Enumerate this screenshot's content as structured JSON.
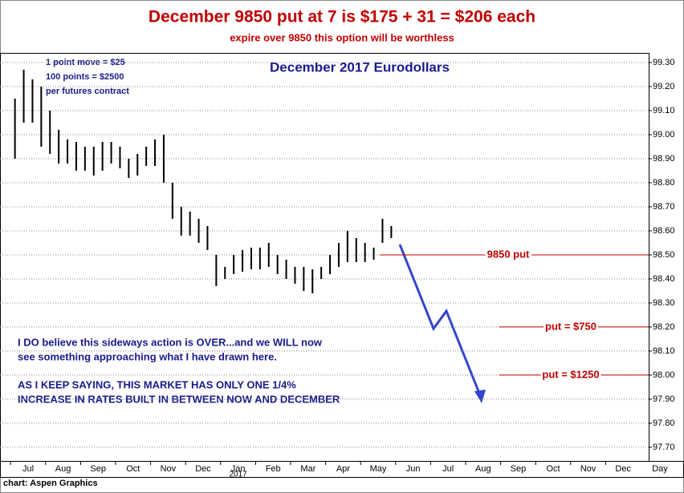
{
  "chart_data": {
    "type": "ohlc",
    "title": "December 9850 put at 7 is $175 + 31 = $206 each",
    "subtitle": "expire over 9850 this option will be worthless",
    "chart_title": "December 2017 Eurodollars",
    "notes": [
      "1 point move = $25",
      "100 points = $2500",
      "per futures contract"
    ],
    "comments": [
      "I DO believe this sideways action is OVER...and we WILL now",
      "see something approaching what I have drawn here.",
      "AS I KEEP SAYING, THIS MARKET HAS ONLY ONE 1/4%",
      "INCREASE IN RATES BUILT IN BETWEEN NOW AND DECEMBER"
    ],
    "credit": "chart: Aspen Graphics",
    "categories": [
      "Jul",
      "Aug",
      "Sep",
      "Oct",
      "Nov",
      "Dec",
      "Jan",
      "Feb",
      "Mar",
      "Apr",
      "May",
      "Jun",
      "Jul",
      "Aug",
      "Sep",
      "Oct",
      "Nov",
      "Dec"
    ],
    "year_label": "2017",
    "x_label": "Day",
    "color": "#000000",
    "high": [
      [
        99.15,
        99.27,
        99.23,
        99.2
      ],
      [
        99.1,
        99.02,
        98.98,
        98.97
      ],
      [
        98.95,
        98.95,
        98.97,
        98.97
      ],
      [
        98.95,
        98.9,
        98.92,
        98.95
      ],
      [
        98.98,
        99.0,
        98.8,
        98.7
      ],
      [
        98.68,
        98.65,
        98.62,
        98.5
      ],
      [
        98.45,
        98.5,
        98.52,
        98.53
      ],
      [
        98.53,
        98.55,
        98.5,
        98.48
      ],
      [
        98.45,
        98.45,
        98.44,
        98.45
      ],
      [
        98.5,
        98.55,
        98.6,
        98.57
      ],
      [
        98.55,
        98.53,
        98.65,
        98.62
      ],
      [],
      [],
      [],
      [],
      [],
      [],
      []
    ],
    "low": [
      [
        98.9,
        99.05,
        99.05,
        98.95
      ],
      [
        98.92,
        98.88,
        98.88,
        98.85
      ],
      [
        98.85,
        98.83,
        98.85,
        98.88
      ],
      [
        98.86,
        98.82,
        98.83,
        98.87
      ],
      [
        98.87,
        98.8,
        98.65,
        98.58
      ],
      [
        98.58,
        98.55,
        98.52,
        98.37
      ],
      [
        98.4,
        98.42,
        98.43,
        98.44
      ],
      [
        98.44,
        98.45,
        98.42,
        98.4
      ],
      [
        98.38,
        98.35,
        98.34,
        98.4
      ],
      [
        98.42,
        98.45,
        98.47,
        98.47
      ],
      [
        98.47,
        98.48,
        98.55,
        98.57
      ],
      [],
      [],
      [],
      [],
      [],
      [],
      []
    ],
    "levels": [
      {
        "value": 98.5,
        "label": "9850 put"
      },
      {
        "value": 98.2,
        "label": "put = $750"
      },
      {
        "value": 98.0,
        "label": "put = $1250"
      }
    ],
    "level_color": "#c00000",
    "ylim": [
      97.643,
      99.34
    ],
    "yticks": [
      {
        "value": 97.7,
        "label": "97.70"
      },
      {
        "value": 97.8,
        "label": "97.80"
      },
      {
        "value": 97.9,
        "label": "97.90"
      },
      {
        "value": 98.0,
        "label": "98.00"
      },
      {
        "value": 98.1,
        "label": "98.10"
      },
      {
        "value": 98.2,
        "label": "98.20"
      },
      {
        "value": 98.3,
        "label": "98.30"
      },
      {
        "value": 98.4,
        "label": "98.40"
      },
      {
        "value": 98.5,
        "label": "98.50"
      },
      {
        "value": 98.6,
        "label": "98.60"
      },
      {
        "value": 98.7,
        "label": "98.70"
      },
      {
        "value": 98.8,
        "label": "98.80"
      },
      {
        "value": 98.9,
        "label": "98.90"
      },
      {
        "value": 99.0,
        "label": "99.00"
      },
      {
        "value": 99.1,
        "label": "99.10"
      },
      {
        "value": 99.2,
        "label": "99.20"
      },
      {
        "value": 99.3,
        "label": "99.30"
      }
    ],
    "grid": true
  }
}
